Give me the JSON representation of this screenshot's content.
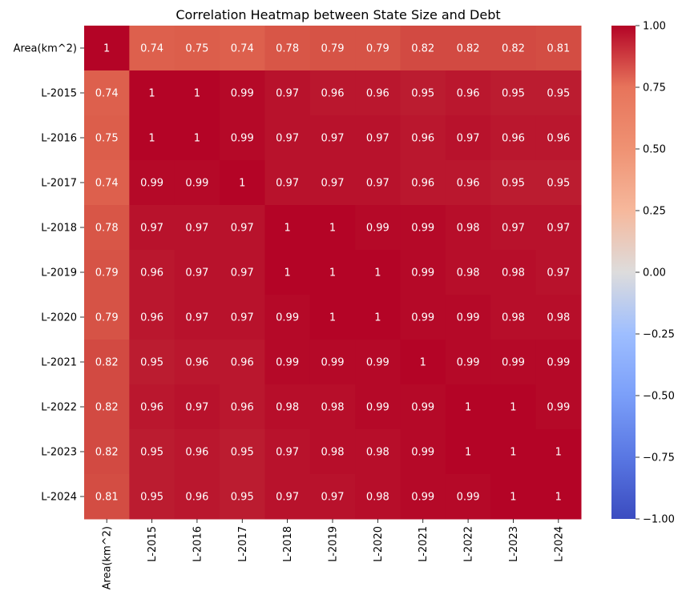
{
  "chart_data": {
    "type": "heatmap",
    "title": "Correlation Heatmap between State Size and Debt",
    "row_labels": [
      "Area(km^2)",
      "L-2015",
      "L-2016",
      "L-2017",
      "L-2018",
      "L-2019",
      "L-2020",
      "L-2021",
      "L-2022",
      "L-2023",
      "L-2024"
    ],
    "column_labels": [
      "Area(km^2)",
      "L-2015",
      "L-2016",
      "L-2017",
      "L-2018",
      "L-2019",
      "L-2020",
      "L-2021",
      "L-2022",
      "L-2023",
      "L-2024"
    ],
    "values": [
      [
        1,
        0.74,
        0.75,
        0.74,
        0.78,
        0.79,
        0.79,
        0.82,
        0.82,
        0.82,
        0.81
      ],
      [
        0.74,
        1,
        1,
        0.99,
        0.97,
        0.96,
        0.96,
        0.95,
        0.96,
        0.95,
        0.95
      ],
      [
        0.75,
        1,
        1,
        0.99,
        0.97,
        0.97,
        0.97,
        0.96,
        0.97,
        0.96,
        0.96
      ],
      [
        0.74,
        0.99,
        0.99,
        1,
        0.97,
        0.97,
        0.97,
        0.96,
        0.96,
        0.95,
        0.95
      ],
      [
        0.78,
        0.97,
        0.97,
        0.97,
        1,
        1,
        0.99,
        0.99,
        0.98,
        0.97,
        0.97
      ],
      [
        0.79,
        0.96,
        0.97,
        0.97,
        1,
        1,
        1,
        0.99,
        0.98,
        0.98,
        0.97
      ],
      [
        0.79,
        0.96,
        0.97,
        0.97,
        0.99,
        1,
        1,
        0.99,
        0.99,
        0.98,
        0.98
      ],
      [
        0.82,
        0.95,
        0.96,
        0.96,
        0.99,
        0.99,
        0.99,
        1,
        0.99,
        0.99,
        0.99
      ],
      [
        0.82,
        0.96,
        0.97,
        0.96,
        0.98,
        0.98,
        0.99,
        0.99,
        1,
        1,
        0.99
      ],
      [
        0.82,
        0.95,
        0.96,
        0.95,
        0.97,
        0.98,
        0.98,
        0.99,
        1,
        1,
        1
      ],
      [
        0.81,
        0.95,
        0.96,
        0.95,
        0.97,
        0.97,
        0.98,
        0.99,
        0.99,
        1,
        1
      ]
    ],
    "colormap": "coolwarm",
    "colorbar": {
      "range": [
        -1.0,
        1.0
      ],
      "ticks": [
        1.0,
        0.75,
        0.5,
        0.25,
        0.0,
        -0.25,
        -0.5,
        -0.75,
        -1.0
      ],
      "tick_labels": [
        "1.00",
        "0.75",
        "0.50",
        "0.25",
        "0.00",
        "−0.25",
        "−0.50",
        "−0.75",
        "−1.00"
      ]
    },
    "annotations": true,
    "grid": false,
    "legend": "colorbar-right"
  }
}
